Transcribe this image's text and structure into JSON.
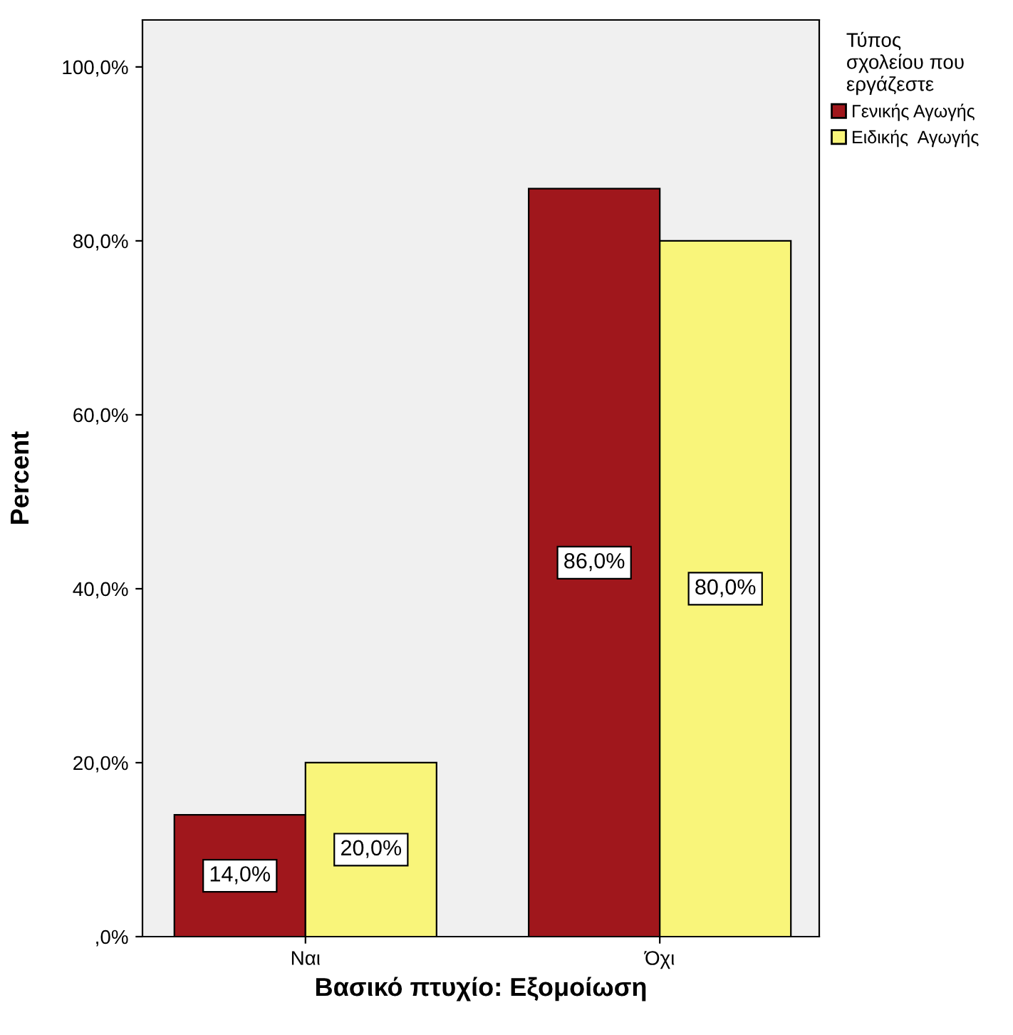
{
  "chart_data": {
    "type": "bar",
    "xlabel": "Βασικό πτυχίο: Εξομοίωση",
    "ylabel": "Percent",
    "legend_title": "Τύπος\nσχολείου που\nεργάζεστε",
    "legend": "top right",
    "categories": [
      "Ναι",
      "Όχι"
    ],
    "series": [
      {
        "name": "Γενικής Αγωγής",
        "color": "#a0171c",
        "values": [
          14.0,
          86.0
        ],
        "value_labels": [
          "14,0%",
          "86,0%"
        ]
      },
      {
        "name": "Ειδικής  Αγωγής",
        "color": "#f9f57a",
        "values": [
          20.0,
          80.0
        ],
        "value_labels": [
          "20,0%",
          "80,0%"
        ]
      }
    ],
    "ylim": [
      0,
      105.4
    ],
    "yticks": [
      {
        "value": 0,
        "label": ",0%"
      },
      {
        "value": 20,
        "label": "20,0%"
      },
      {
        "value": 40,
        "label": "40,0%"
      },
      {
        "value": 60,
        "label": "60,0%"
      },
      {
        "value": 80,
        "label": "80,0%"
      },
      {
        "value": 100,
        "label": "100,0%"
      }
    ],
    "grid": false
  }
}
